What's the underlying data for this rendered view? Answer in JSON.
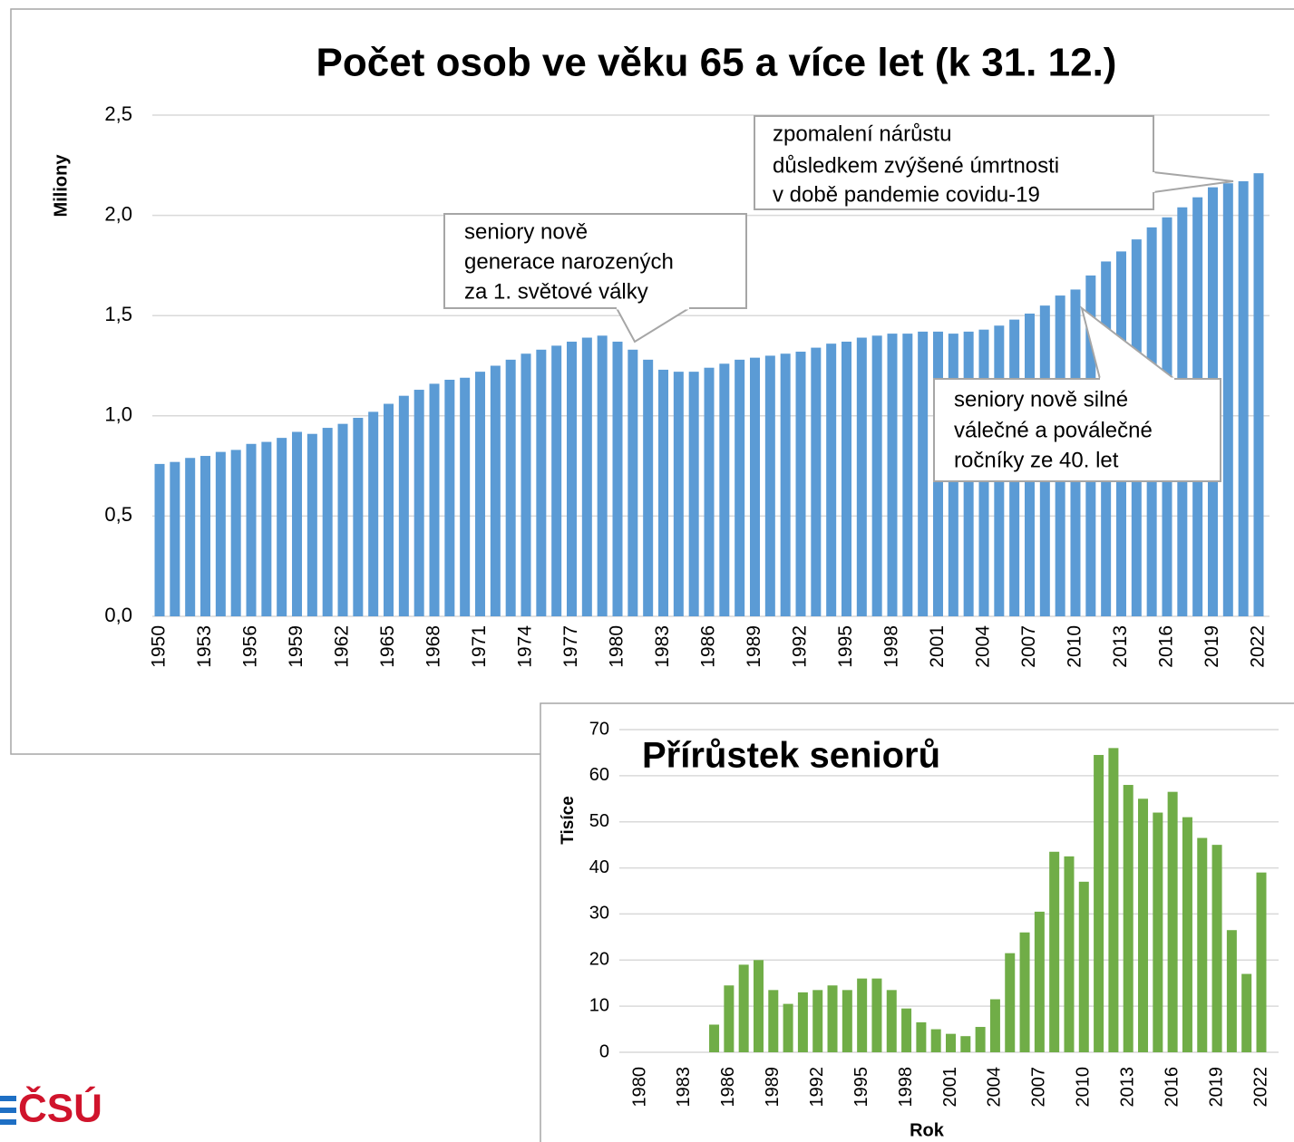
{
  "logo": "ČSÚ",
  "chart_data": [
    {
      "type": "bar",
      "title": "Počet osob ve věku 65 a více let (k 31. 12.)",
      "y_label": "Miliony",
      "color": "#5b9bd5",
      "grid": true,
      "categories": [
        "1950",
        null,
        null,
        "1953",
        null,
        null,
        "1956",
        null,
        null,
        "1959",
        null,
        null,
        "1962",
        null,
        null,
        "1965",
        null,
        null,
        "1968",
        null,
        null,
        "1971",
        null,
        null,
        "1974",
        null,
        null,
        "1977",
        null,
        null,
        "1980",
        null,
        null,
        "1983",
        null,
        null,
        "1986",
        null,
        null,
        "1989",
        null,
        null,
        "1992",
        null,
        null,
        "1995",
        null,
        null,
        "1998",
        null,
        null,
        "2001",
        null,
        null,
        "2004",
        null,
        null,
        "2007",
        null,
        null,
        "2010",
        null,
        null,
        "2013",
        null,
        null,
        "2016",
        null,
        null,
        "2019",
        null,
        null,
        "2022"
      ],
      "values": [
        0.76,
        0.77,
        0.79,
        0.8,
        0.82,
        0.83,
        0.86,
        0.87,
        0.89,
        0.92,
        0.91,
        0.94,
        0.96,
        0.99,
        1.02,
        1.06,
        1.1,
        1.13,
        1.16,
        1.18,
        1.19,
        1.22,
        1.25,
        1.28,
        1.31,
        1.33,
        1.35,
        1.37,
        1.39,
        1.4,
        1.37,
        1.33,
        1.28,
        1.23,
        1.22,
        1.22,
        1.24,
        1.26,
        1.28,
        1.29,
        1.3,
        1.31,
        1.32,
        1.34,
        1.36,
        1.37,
        1.39,
        1.4,
        1.41,
        1.41,
        1.42,
        1.42,
        1.41,
        1.42,
        1.43,
        1.45,
        1.48,
        1.51,
        1.55,
        1.6,
        1.63,
        1.7,
        1.77,
        1.82,
        1.88,
        1.94,
        1.99,
        2.04,
        2.09,
        2.14,
        2.16,
        2.17,
        2.21
      ],
      "ylim": [
        0,
        2.5
      ],
      "yticks": [
        {
          "value": 0,
          "label": "0,0"
        },
        {
          "value": 0.5,
          "label": "0,5"
        },
        {
          "value": 1,
          "label": "1,0"
        },
        {
          "value": 1.5,
          "label": "1,5"
        },
        {
          "value": 2,
          "label": "2,0"
        },
        {
          "value": 2.5,
          "label": "2,5"
        }
      ],
      "annotations": [
        {
          "lines": [
            "seniory nově",
            "generace narozených",
            "za 1. světové války"
          ]
        },
        {
          "lines": [
            "zpomalení  nárůstu",
            "důsledkem  zvýšené úmrtnosti",
            "v době pandemie  covidu-19"
          ]
        },
        {
          "lines": [
            "seniory nově silné",
            "válečné a poválečné",
            "ročníky ze 40. let"
          ]
        }
      ]
    },
    {
      "type": "bar",
      "title": "Přírůstek seniorů",
      "y_label": "Tisíce",
      "x_label": "Rok",
      "color": "#70ad47",
      "grid": true,
      "categories": [
        "1980",
        null,
        null,
        "1983",
        null,
        null,
        "1986",
        null,
        null,
        "1989",
        null,
        null,
        "1992",
        null,
        null,
        "1995",
        null,
        null,
        "1998",
        null,
        null,
        "2001",
        null,
        null,
        "2004",
        null,
        null,
        "2007",
        null,
        null,
        "2010",
        null,
        null,
        "2013",
        null,
        null,
        "2016",
        null,
        null,
        "2019",
        null,
        null,
        "2022"
      ],
      "values": [
        null,
        null,
        null,
        null,
        null,
        6,
        14.5,
        19,
        20,
        13.5,
        10.5,
        13,
        13.5,
        14.5,
        13.5,
        16,
        16,
        13.5,
        9.5,
        6.5,
        5,
        4,
        3.5,
        5.5,
        11.5,
        21.5,
        26,
        30.5,
        43.5,
        42.5,
        37,
        64.5,
        66,
        58,
        55,
        52,
        56.5,
        51,
        46.5,
        45,
        26.5,
        17,
        39
      ],
      "ylim": [
        0,
        70
      ],
      "yticks": [
        0,
        10,
        20,
        30,
        40,
        50,
        60,
        70
      ]
    }
  ]
}
